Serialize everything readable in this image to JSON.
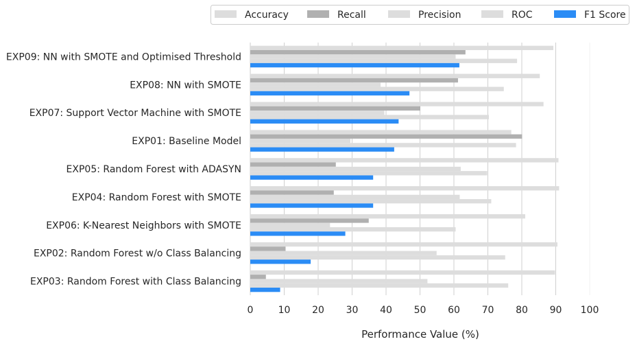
{
  "chart_data": {
    "type": "bar",
    "orientation": "horizontal",
    "title": "",
    "xlabel": "Performance Value (%)",
    "ylabel": "",
    "xlim": [
      0,
      100
    ],
    "xticks": [
      0,
      10,
      20,
      30,
      40,
      50,
      60,
      70,
      80,
      90,
      100
    ],
    "grid": "vertical",
    "legend_position": "top-right, outside",
    "categories": [
      "EXP09: NN with SMOTE and Optimised Threshold",
      "EXP08: NN with SMOTE",
      "EXP07: Support Vector Machine with SMOTE",
      "EXP01: Baseline Model",
      "EXP05: Random Forest with ADASYN",
      "EXP04: Random Forest with SMOTE",
      "EXP06: K-Nearest Neighbors with SMOTE",
      "EXP02: Random Forest w/o Class Balancing",
      "EXP03: Random Forest with Class Balancing"
    ],
    "series": [
      {
        "name": "Accuracy",
        "color": "#dddddd",
        "values": [
          89.3,
          85.3,
          86.4,
          76.9,
          90.8,
          91.0,
          81.0,
          90.5,
          89.8
        ]
      },
      {
        "name": "Recall",
        "color": "#b0b0b0",
        "values": [
          63.4,
          61.2,
          50.1,
          80.1,
          25.2,
          24.6,
          34.9,
          10.4,
          4.6
        ]
      },
      {
        "name": "Precision",
        "color": "#dddddd",
        "values": [
          60.5,
          38.4,
          39.5,
          29.5,
          62.0,
          61.7,
          23.5,
          54.9,
          52.2
        ]
      },
      {
        "name": "ROC",
        "color": "#dddddd",
        "values": [
          78.6,
          74.7,
          70.3,
          78.3,
          69.8,
          71.0,
          60.5,
          75.1,
          76.0
        ]
      },
      {
        "name": "F1 Score",
        "color": "#2b8cf5",
        "values": [
          61.6,
          46.9,
          43.7,
          42.4,
          36.2,
          36.2,
          28.0,
          17.8,
          8.8
        ]
      }
    ]
  }
}
